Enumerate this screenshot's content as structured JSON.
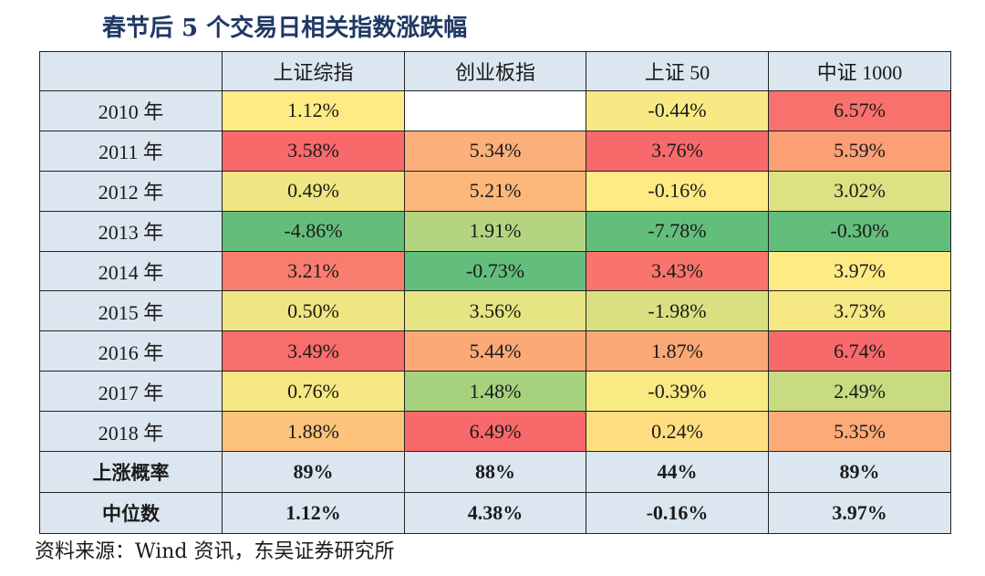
{
  "title": "春节后 5 个交易日相关指数涨跌幅",
  "source": "资料来源：Wind 资讯，东吴证券研究所",
  "chart_data": {
    "type": "table",
    "columns": [
      "上证综指",
      "创业板指",
      "上证 50",
      "中证 1000"
    ],
    "rows": [
      {
        "label": "2010 年",
        "values": [
          "1.12%",
          "",
          "-0.44%",
          "6.57%"
        ]
      },
      {
        "label": "2011 年",
        "values": [
          "3.58%",
          "5.34%",
          "3.76%",
          "5.59%"
        ]
      },
      {
        "label": "2012 年",
        "values": [
          "0.49%",
          "5.21%",
          "-0.16%",
          "3.02%"
        ]
      },
      {
        "label": "2013 年",
        "values": [
          "-4.86%",
          "1.91%",
          "-7.78%",
          "-0.30%"
        ]
      },
      {
        "label": "2014 年",
        "values": [
          "3.21%",
          "-0.73%",
          "3.43%",
          "3.97%"
        ]
      },
      {
        "label": "2015 年",
        "values": [
          "0.50%",
          "3.56%",
          "-1.98%",
          "3.73%"
        ]
      },
      {
        "label": "2016 年",
        "values": [
          "3.49%",
          "5.44%",
          "1.87%",
          "6.74%"
        ]
      },
      {
        "label": "2017 年",
        "values": [
          "0.76%",
          "1.48%",
          "-0.39%",
          "2.49%"
        ]
      },
      {
        "label": "2018 年",
        "values": [
          "1.88%",
          "6.49%",
          "0.24%",
          "5.35%"
        ]
      }
    ],
    "summary": [
      {
        "label": "上涨概率",
        "values": [
          "89%",
          "88%",
          "44%",
          "89%"
        ]
      },
      {
        "label": "中位数",
        "values": [
          "1.12%",
          "4.38%",
          "-0.16%",
          "3.97%"
        ]
      }
    ],
    "heatmap_colors": {
      "low": "#63be7b",
      "mid": "#ffeb84",
      "high": "#f8696b",
      "empty": "#ffffff"
    }
  }
}
